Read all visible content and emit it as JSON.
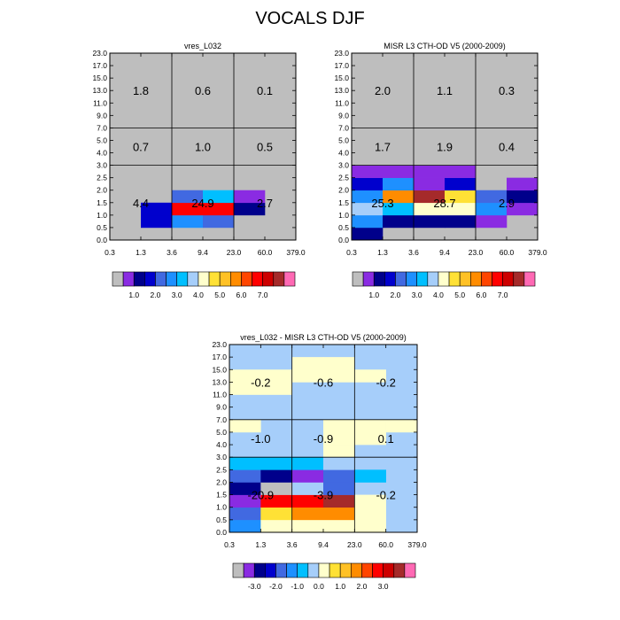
{
  "title": "VOCALS DJF",
  "colors": {
    "background_gray": "#BEBEBE",
    "panel3_background": "#A6CEFA"
  },
  "chart_data": [
    {
      "type": "heatmap",
      "title": "vres_L032",
      "x_ticks": [
        "0.3",
        "1.3",
        "3.6",
        "9.4",
        "23.0",
        "60.0",
        "379.0"
      ],
      "y_ticks": [
        "0.0",
        "0.5",
        "1.0",
        "1.5",
        "2.0",
        "2.5",
        "3.0",
        "4.0",
        "5.0",
        "7.0",
        "9.0",
        "11.0",
        "13.0",
        "15.0",
        "17.0",
        "23.0"
      ],
      "region_labels": [
        {
          "value": "1.8",
          "col": 0,
          "band": "high"
        },
        {
          "value": "0.6",
          "col": 1,
          "band": "high"
        },
        {
          "value": "0.1",
          "col": 2,
          "band": "high"
        },
        {
          "value": "0.7",
          "col": 0,
          "band": "mid"
        },
        {
          "value": "1.0",
          "col": 1,
          "band": "mid"
        },
        {
          "value": "0.5",
          "col": 2,
          "band": "mid"
        },
        {
          "value": "4.4",
          "col": 0,
          "band": "low"
        },
        {
          "value": "24.9",
          "col": 1,
          "band": "low"
        },
        {
          "value": "2.7",
          "col": 2,
          "band": "low"
        }
      ],
      "cells": [
        {
          "xi": 1,
          "yi": 1,
          "color": "#0000CD"
        },
        {
          "xi": 1,
          "yi": 2,
          "color": "#0000CD"
        },
        {
          "xi": 2,
          "yi": 1,
          "color": "#1E90FF"
        },
        {
          "xi": 2,
          "yi": 2,
          "color": "#FF0000"
        },
        {
          "xi": 2,
          "yi": 3,
          "color": "#4169E1"
        },
        {
          "xi": 3,
          "yi": 1,
          "color": "#4169E1"
        },
        {
          "xi": 3,
          "yi": 2,
          "color": "#FF0000"
        },
        {
          "xi": 3,
          "yi": 3,
          "color": "#00BFFF"
        },
        {
          "xi": 4,
          "yi": 2,
          "color": "#00008B"
        },
        {
          "xi": 4,
          "yi": 3,
          "color": "#8A2BE2"
        }
      ],
      "colorbar": {
        "colors": [
          "#BEBEBE",
          "#8A2BE2",
          "#00008B",
          "#0000CD",
          "#4169E1",
          "#1E90FF",
          "#00BFFF",
          "#A6CEFA",
          "#FFFFCC",
          "#FFE135",
          "#FFC125",
          "#FF8C00",
          "#FF4500",
          "#FF0000",
          "#CD0000",
          "#A52A2A",
          "#FF69B4"
        ],
        "labels": [
          {
            "text": "1.0",
            "at": 2
          },
          {
            "text": "2.0",
            "at": 4
          },
          {
            "text": "3.0",
            "at": 6
          },
          {
            "text": "4.0",
            "at": 8
          },
          {
            "text": "5.0",
            "at": 10
          },
          {
            "text": "6.0",
            "at": 12
          },
          {
            "text": "7.0",
            "at": 14
          }
        ]
      }
    },
    {
      "type": "heatmap",
      "title": "MISR L3 CTH-OD V5 (2000-2009)",
      "x_ticks": [
        "0.3",
        "1.3",
        "3.6",
        "9.4",
        "23.0",
        "60.0",
        "379.0"
      ],
      "y_ticks": [
        "0.0",
        "0.5",
        "1.0",
        "1.5",
        "2.0",
        "2.5",
        "3.0",
        "4.0",
        "5.0",
        "7.0",
        "9.0",
        "11.0",
        "13.0",
        "15.0",
        "17.0",
        "23.0"
      ],
      "region_labels": [
        {
          "value": "2.0",
          "col": 0,
          "band": "high"
        },
        {
          "value": "1.1",
          "col": 1,
          "band": "high"
        },
        {
          "value": "0.3",
          "col": 2,
          "band": "high"
        },
        {
          "value": "1.7",
          "col": 0,
          "band": "mid"
        },
        {
          "value": "1.9",
          "col": 1,
          "band": "mid"
        },
        {
          "value": "0.4",
          "col": 2,
          "band": "mid"
        },
        {
          "value": "25.3",
          "col": 0,
          "band": "low"
        },
        {
          "value": "28.7",
          "col": 1,
          "band": "low"
        },
        {
          "value": "2.9",
          "col": 2,
          "band": "low"
        }
      ],
      "cells": [
        {
          "xi": 0,
          "yi": 0,
          "color": "#00008B"
        },
        {
          "xi": 0,
          "yi": 1,
          "color": "#1E90FF"
        },
        {
          "xi": 0,
          "yi": 2,
          "color": "#A6CEFA"
        },
        {
          "xi": 0,
          "yi": 3,
          "color": "#1E90FF"
        },
        {
          "xi": 0,
          "yi": 4,
          "color": "#0000CD"
        },
        {
          "xi": 0,
          "yi": 5,
          "color": "#8A2BE2"
        },
        {
          "xi": 1,
          "yi": 1,
          "color": "#00008B"
        },
        {
          "xi": 1,
          "yi": 2,
          "color": "#00BFFF"
        },
        {
          "xi": 1,
          "yi": 3,
          "color": "#FF8C00"
        },
        {
          "xi": 1,
          "yi": 4,
          "color": "#1E90FF"
        },
        {
          "xi": 1,
          "yi": 5,
          "color": "#8A2BE2"
        },
        {
          "xi": 2,
          "yi": 1,
          "color": "#00008B"
        },
        {
          "xi": 2,
          "yi": 2,
          "color": "#FFFFCC"
        },
        {
          "xi": 2,
          "yi": 3,
          "color": "#A52A2A"
        },
        {
          "xi": 2,
          "yi": 4,
          "color": "#8A2BE2"
        },
        {
          "xi": 2,
          "yi": 5,
          "color": "#8A2BE2"
        },
        {
          "xi": 3,
          "yi": 1,
          "color": "#00008B"
        },
        {
          "xi": 3,
          "yi": 2,
          "color": "#FFFFCC"
        },
        {
          "xi": 3,
          "yi": 3,
          "color": "#FFE135"
        },
        {
          "xi": 3,
          "yi": 4,
          "color": "#0000CD"
        },
        {
          "xi": 3,
          "yi": 5,
          "color": "#8A2BE2"
        },
        {
          "xi": 4,
          "yi": 1,
          "color": "#8A2BE2"
        },
        {
          "xi": 4,
          "yi": 2,
          "color": "#1E90FF"
        },
        {
          "xi": 4,
          "yi": 3,
          "color": "#4169E1"
        },
        {
          "xi": 5,
          "yi": 2,
          "color": "#8A2BE2"
        },
        {
          "xi": 5,
          "yi": 3,
          "color": "#00008B"
        },
        {
          "xi": 5,
          "yi": 4,
          "color": "#8A2BE2"
        }
      ],
      "colorbar": {
        "colors": [
          "#BEBEBE",
          "#8A2BE2",
          "#00008B",
          "#0000CD",
          "#4169E1",
          "#1E90FF",
          "#00BFFF",
          "#A6CEFA",
          "#FFFFCC",
          "#FFE135",
          "#FFC125",
          "#FF8C00",
          "#FF4500",
          "#FF0000",
          "#CD0000",
          "#A52A2A",
          "#FF69B4"
        ],
        "labels": [
          {
            "text": "1.0",
            "at": 2
          },
          {
            "text": "2.0",
            "at": 4
          },
          {
            "text": "3.0",
            "at": 6
          },
          {
            "text": "4.0",
            "at": 8
          },
          {
            "text": "5.0",
            "at": 10
          },
          {
            "text": "6.0",
            "at": 12
          },
          {
            "text": "7.0",
            "at": 14
          }
        ]
      }
    },
    {
      "type": "heatmap",
      "title": "vres_L032 - MISR L3 CTH-OD V5 (2000-2009)",
      "x_ticks": [
        "0.3",
        "1.3",
        "3.6",
        "9.4",
        "23.0",
        "60.0",
        "379.0"
      ],
      "y_ticks": [
        "0.0",
        "0.5",
        "1.0",
        "1.5",
        "2.0",
        "2.5",
        "3.0",
        "4.0",
        "5.0",
        "7.0",
        "9.0",
        "11.0",
        "13.0",
        "15.0",
        "17.0",
        "23.0"
      ],
      "region_labels": [
        {
          "value": "-0.2",
          "col": 0,
          "band": "high"
        },
        {
          "value": "-0.6",
          "col": 1,
          "band": "high"
        },
        {
          "value": "-0.2",
          "col": 2,
          "band": "high"
        },
        {
          "value": "-1.0",
          "col": 0,
          "band": "mid"
        },
        {
          "value": "-0.9",
          "col": 1,
          "band": "mid"
        },
        {
          "value": "0.1",
          "col": 2,
          "band": "mid"
        },
        {
          "value": "-20.9",
          "col": 0,
          "band": "low"
        },
        {
          "value": "-3.9",
          "col": 1,
          "band": "low"
        },
        {
          "value": "-0.2",
          "col": 2,
          "band": "low"
        }
      ],
      "cells": [
        {
          "xi": 0,
          "yi": 0,
          "color": "#1E90FF"
        },
        {
          "xi": 0,
          "yi": 1,
          "color": "#4169E1"
        },
        {
          "xi": 0,
          "yi": 2,
          "color": "#8A2BE2"
        },
        {
          "xi": 0,
          "yi": 3,
          "color": "#00008B"
        },
        {
          "xi": 0,
          "yi": 4,
          "color": "#4169E1"
        },
        {
          "xi": 0,
          "yi": 5,
          "color": "#00BFFF"
        },
        {
          "xi": 0,
          "yi": 8,
          "color": "#FFFFCC"
        },
        {
          "xi": 0,
          "yi": 11,
          "color": "#FFFFCC"
        },
        {
          "xi": 0,
          "yi": 12,
          "color": "#FFFFCC"
        },
        {
          "xi": 1,
          "yi": 0,
          "color": "#FFFFCC"
        },
        {
          "xi": 1,
          "yi": 1,
          "color": "#FFE135"
        },
        {
          "xi": 1,
          "yi": 2,
          "color": "#FF0000"
        },
        {
          "xi": 1,
          "yi": 3,
          "color": "#BEBEBE"
        },
        {
          "xi": 1,
          "yi": 4,
          "color": "#00008B"
        },
        {
          "xi": 1,
          "yi": 5,
          "color": "#00BFFF"
        },
        {
          "xi": 1,
          "yi": 11,
          "color": "#FFFFCC"
        },
        {
          "xi": 1,
          "yi": 12,
          "color": "#FFFFCC"
        },
        {
          "xi": 2,
          "yi": 0,
          "color": "#FFFFCC"
        },
        {
          "xi": 2,
          "yi": 1,
          "color": "#FF8C00"
        },
        {
          "xi": 2,
          "yi": 2,
          "color": "#FF0000"
        },
        {
          "xi": 2,
          "yi": 3,
          "color": "#A6CEFA"
        },
        {
          "xi": 2,
          "yi": 4,
          "color": "#8A2BE2"
        },
        {
          "xi": 2,
          "yi": 5,
          "color": "#00BFFF"
        },
        {
          "xi": 2,
          "yi": 12,
          "color": "#FFFFCC"
        },
        {
          "xi": 2,
          "yi": 13,
          "color": "#FFFFCC"
        },
        {
          "xi": 3,
          "yi": 0,
          "color": "#FFFFCC"
        },
        {
          "xi": 3,
          "yi": 1,
          "color": "#FF8C00"
        },
        {
          "xi": 3,
          "yi": 2,
          "color": "#A52A2A"
        },
        {
          "xi": 3,
          "yi": 3,
          "color": "#4169E1"
        },
        {
          "xi": 3,
          "yi": 4,
          "color": "#4169E1"
        },
        {
          "xi": 3,
          "yi": 5,
          "color": "#A6CEFA"
        },
        {
          "xi": 3,
          "yi": 6,
          "color": "#FFFFCC"
        },
        {
          "xi": 3,
          "yi": 7,
          "color": "#FFFFCC"
        },
        {
          "xi": 3,
          "yi": 8,
          "color": "#FFFFCC"
        },
        {
          "xi": 3,
          "yi": 12,
          "color": "#FFFFCC"
        },
        {
          "xi": 3,
          "yi": 13,
          "color": "#FFFFCC"
        },
        {
          "xi": 4,
          "yi": 0,
          "color": "#FFFFCC"
        },
        {
          "xi": 4,
          "yi": 1,
          "color": "#FFFFCC"
        },
        {
          "xi": 4,
          "yi": 2,
          "color": "#FFFFCC"
        },
        {
          "xi": 4,
          "yi": 4,
          "color": "#00BFFF"
        },
        {
          "xi": 4,
          "yi": 7,
          "color": "#FFFFCC"
        },
        {
          "xi": 4,
          "yi": 8,
          "color": "#FFFFCC"
        },
        {
          "xi": 4,
          "yi": 12,
          "color": "#FFFFCC"
        },
        {
          "xi": 5,
          "yi": 8,
          "color": "#FFFFCC"
        }
      ],
      "colorbar": {
        "colors": [
          "#BEBEBE",
          "#8A2BE2",
          "#00008B",
          "#0000CD",
          "#4169E1",
          "#1E90FF",
          "#00BFFF",
          "#A6CEFA",
          "#FFFFCC",
          "#FFE135",
          "#FFC125",
          "#FF8C00",
          "#FF4500",
          "#FF0000",
          "#CD0000",
          "#A52A2A",
          "#FF69B4"
        ],
        "labels": [
          {
            "text": "-3.0",
            "at": 2
          },
          {
            "text": "-2.0",
            "at": 4
          },
          {
            "text": "-1.0",
            "at": 6
          },
          {
            "text": "0.0",
            "at": 8
          },
          {
            "text": "1.0",
            "at": 10
          },
          {
            "text": "2.0",
            "at": 12
          },
          {
            "text": "3.0",
            "at": 14
          }
        ]
      }
    }
  ]
}
